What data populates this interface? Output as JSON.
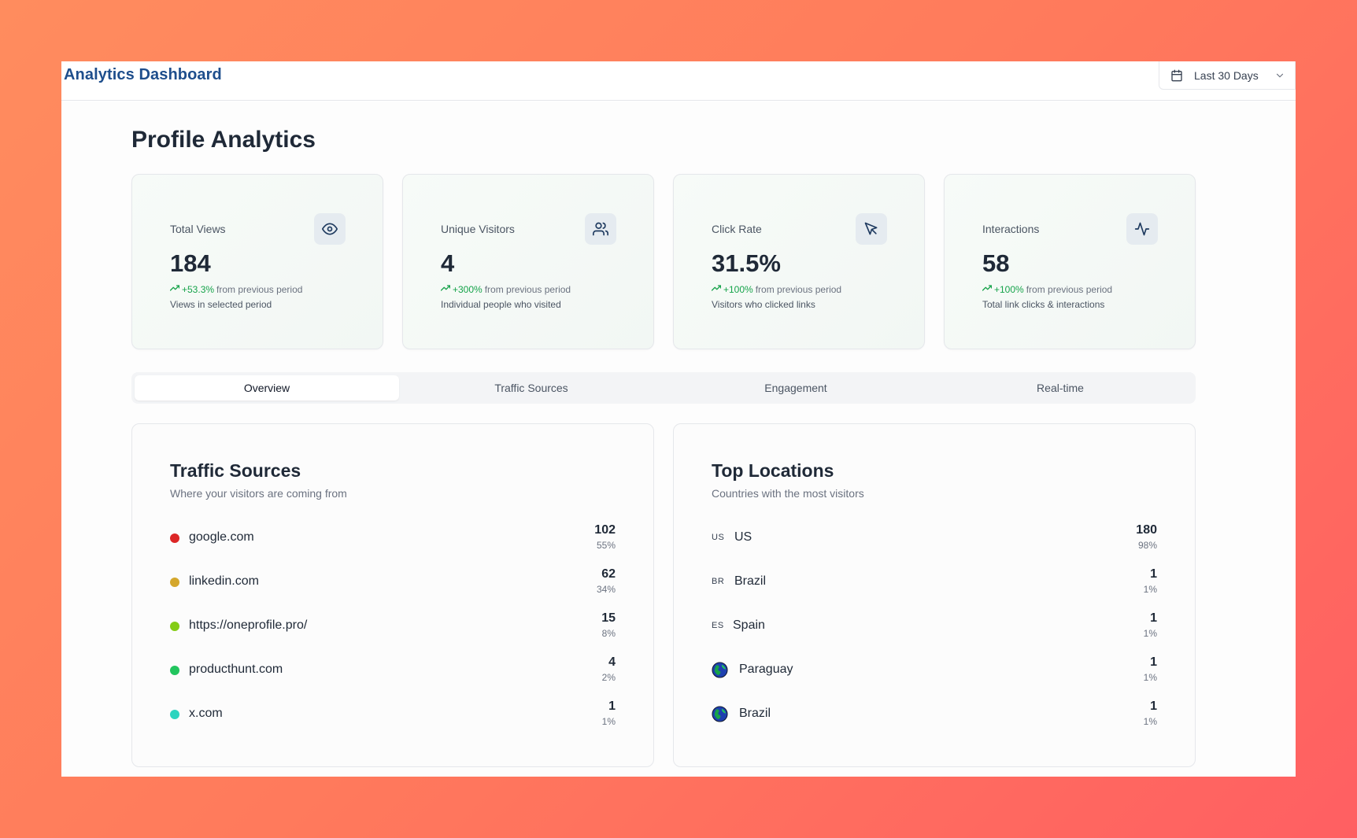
{
  "header": {
    "brand": "Analytics Dashboard",
    "date_range": "Last 30 Days"
  },
  "page": {
    "title": "Profile Analytics"
  },
  "stats": [
    {
      "title": "Total Views",
      "icon": "eye-icon",
      "value": "184",
      "change": "+53.3%",
      "change_suffix": "from previous period",
      "desc": "Views in selected period"
    },
    {
      "title": "Unique Visitors",
      "icon": "users-icon",
      "value": "4",
      "change": "+300%",
      "change_suffix": "from previous period",
      "desc": "Individual people who visited"
    },
    {
      "title": "Click Rate",
      "icon": "cursor-icon",
      "value": "31.5%",
      "change": "+100%",
      "change_suffix": "from previous period",
      "desc": "Visitors who clicked links"
    },
    {
      "title": "Interactions",
      "icon": "activity-icon",
      "value": "58",
      "change": "+100%",
      "change_suffix": "from previous period",
      "desc": "Total link clicks & interactions"
    }
  ],
  "tabs": [
    {
      "label": "Overview",
      "active": true
    },
    {
      "label": "Traffic Sources",
      "active": false
    },
    {
      "label": "Engagement",
      "active": false
    },
    {
      "label": "Real-time",
      "active": false
    }
  ],
  "traffic": {
    "title": "Traffic Sources",
    "subtitle": "Where your visitors are coming from",
    "items": [
      {
        "name": "google.com",
        "count": "102",
        "pct": "55%",
        "color": "#dc2626"
      },
      {
        "name": "linkedin.com",
        "count": "62",
        "pct": "34%",
        "color": "#d4a72c"
      },
      {
        "name": "https://oneprofile.pro/",
        "count": "15",
        "pct": "8%",
        "color": "#84cc16"
      },
      {
        "name": "producthunt.com",
        "count": "4",
        "pct": "2%",
        "color": "#22c55e"
      },
      {
        "name": "x.com",
        "count": "1",
        "pct": "1%",
        "color": "#2dd4bf"
      }
    ]
  },
  "locations": {
    "title": "Top Locations",
    "subtitle": "Countries with the most visitors",
    "items": [
      {
        "code": "US",
        "name": "US",
        "count": "180",
        "pct": "98%"
      },
      {
        "code": "BR",
        "name": "Brazil",
        "count": "1",
        "pct": "1%"
      },
      {
        "code": "ES",
        "name": "Spain",
        "count": "1",
        "pct": "1%"
      },
      {
        "code": "",
        "icon": "globe-icon",
        "name": "Paraguay",
        "count": "1",
        "pct": "1%"
      },
      {
        "code": "",
        "icon": "globe-icon",
        "name": "Brazil",
        "count": "1",
        "pct": "1%"
      }
    ]
  },
  "colors": {
    "brand": "#1e4e8c",
    "positive": "#16a34a",
    "background_from": "#ff8c5e",
    "background_to": "#ff5f62"
  }
}
